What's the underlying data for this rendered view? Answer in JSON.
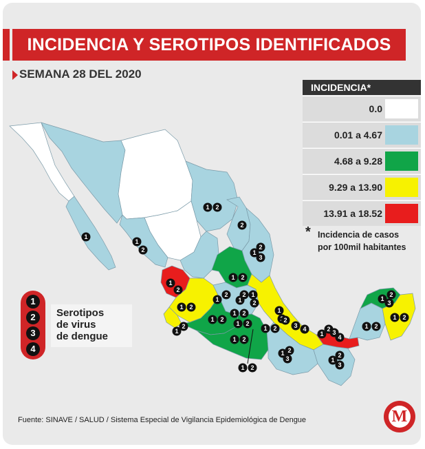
{
  "title": "INCIDENCIA Y SEROTIPOS IDENTIFICADOS",
  "subtitle": "SEMANA 28 DEL 2020",
  "legend": {
    "heading": "INCIDENCIA*",
    "rows": [
      {
        "label": "0.0",
        "color": "#ffffff"
      },
      {
        "label": "0.01 a 4.67",
        "color": "#a8d4e0"
      },
      {
        "label": "4.68 a 9.28",
        "color": "#10a548"
      },
      {
        "label": "9.29 a 13.90",
        "color": "#f7f200"
      },
      {
        "label": "13.91 a 18.52",
        "color": "#e81d1d"
      }
    ],
    "note_star": "*",
    "note_line1": "Incidencia de casos",
    "note_line2": "por 100mil habitantes"
  },
  "serotypes": {
    "numbers": [
      "1",
      "2",
      "3",
      "4"
    ],
    "label_line1": "Serotipos",
    "label_line2": "de virus",
    "label_line3": "de dengue"
  },
  "source": "Fuente: SINAVE / SALUD / Sistema Especial de Vigilancia Epidemiológica de Dengue",
  "logo_letter": "M",
  "map": {
    "states": [
      {
        "name": "Baja California",
        "color": "#ffffff"
      },
      {
        "name": "Baja California Sur",
        "color": "#a8d4e0"
      },
      {
        "name": "Sonora",
        "color": "#a8d4e0"
      },
      {
        "name": "Chihuahua",
        "color": "#ffffff"
      },
      {
        "name": "Coahuila",
        "color": "#a8d4e0"
      },
      {
        "name": "Nuevo León",
        "color": "#a8d4e0"
      },
      {
        "name": "Tamaulipas",
        "color": "#a8d4e0"
      },
      {
        "name": "Durango",
        "color": "#ffffff"
      },
      {
        "name": "Sinaloa",
        "color": "#a8d4e0"
      },
      {
        "name": "Nayarit",
        "color": "#e81d1d"
      },
      {
        "name": "Zacatecas",
        "color": "#a8d4e0"
      },
      {
        "name": "San Luis Potosí",
        "color": "#10a548"
      },
      {
        "name": "Jalisco",
        "color": "#f7f200"
      },
      {
        "name": "Colima",
        "color": "#f7f200"
      },
      {
        "name": "Michoacán",
        "color": "#10a548"
      },
      {
        "name": "Guerrero",
        "color": "#10a548"
      },
      {
        "name": "Veracruz",
        "color": "#f7f200"
      },
      {
        "name": "Oaxaca",
        "color": "#a8d4e0"
      },
      {
        "name": "Tabasco",
        "color": "#e81d1d"
      },
      {
        "name": "Chiapas",
        "color": "#a8d4e0"
      },
      {
        "name": "Campeche",
        "color": "#a8d4e0"
      },
      {
        "name": "Yucatán",
        "color": "#10a548"
      },
      {
        "name": "Quintana Roo",
        "color": "#f7f200"
      }
    ],
    "markers": [
      {
        "state": "Coahuila",
        "serotypes": [
          "1",
          "2"
        ]
      },
      {
        "state": "Nuevo León",
        "serotypes": [
          "2"
        ]
      },
      {
        "state": "Tamaulipas",
        "serotypes": [
          "1",
          "2",
          "3"
        ]
      },
      {
        "state": "Baja California Sur",
        "serotypes": [
          "1"
        ]
      },
      {
        "state": "Sinaloa",
        "serotypes": [
          "1",
          "2"
        ]
      },
      {
        "state": "Nayarit",
        "serotypes": [
          "1",
          "2"
        ]
      },
      {
        "state": "San Luis Potosí",
        "serotypes": [
          "1",
          "2"
        ]
      },
      {
        "state": "Jalisco",
        "serotypes": [
          "1",
          "2"
        ]
      },
      {
        "state": "Colima",
        "serotypes": [
          "1",
          "2"
        ]
      },
      {
        "state": "Guanajuato",
        "serotypes": [
          "1",
          "2"
        ]
      },
      {
        "state": "Querétaro",
        "serotypes": [
          "1",
          "2"
        ]
      },
      {
        "state": "Hidalgo",
        "serotypes": [
          "1",
          "2"
        ]
      },
      {
        "state": "Michoacán",
        "serotypes": [
          "1",
          "2"
        ]
      },
      {
        "state": "Estado de México",
        "serotypes": [
          "1",
          "2"
        ]
      },
      {
        "state": "Morelos",
        "serotypes": [
          "1",
          "2"
        ]
      },
      {
        "state": "Puebla",
        "serotypes": [
          "1",
          "2"
        ]
      },
      {
        "state": "Guerrero",
        "serotypes": [
          "1",
          "2"
        ]
      },
      {
        "state": "Ciudad de México",
        "serotypes": [
          "1",
          "2"
        ]
      },
      {
        "state": "Veracruz",
        "serotypes": [
          "1",
          "2"
        ]
      },
      {
        "state": "Veracruz sur",
        "serotypes": [
          "2",
          "3",
          "4"
        ]
      },
      {
        "state": "Oaxaca",
        "serotypes": [
          "1",
          "2",
          "3"
        ]
      },
      {
        "state": "Chiapas",
        "serotypes": [
          "1",
          "2",
          "3"
        ]
      },
      {
        "state": "Tabasco",
        "serotypes": [
          "1",
          "2",
          "3",
          "4"
        ]
      },
      {
        "state": "Campeche",
        "serotypes": [
          "1",
          "2"
        ]
      },
      {
        "state": "Yucatán",
        "serotypes": [
          "1",
          "2",
          "3"
        ]
      },
      {
        "state": "Quintana Roo",
        "serotypes": [
          "1",
          "2"
        ]
      }
    ]
  }
}
